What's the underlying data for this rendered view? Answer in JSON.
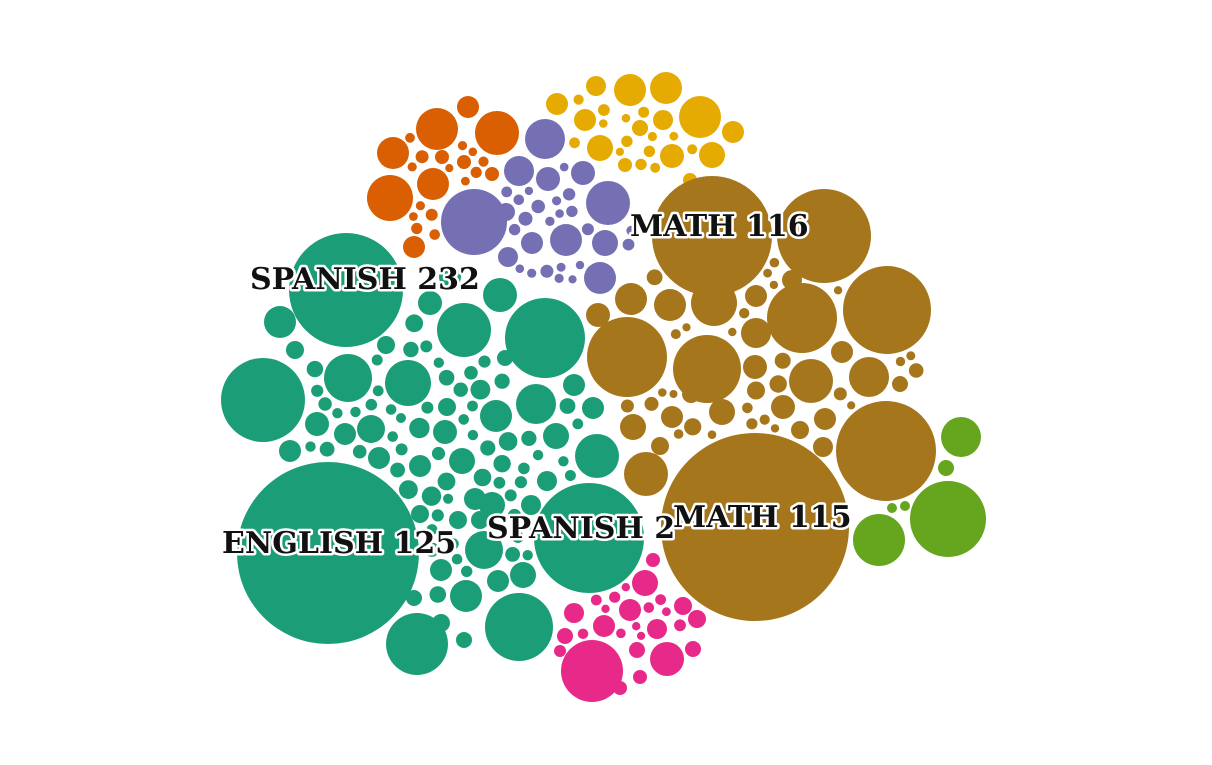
{
  "chart_data": {
    "type": "bubble",
    "labels": [
      "SPANISH 232",
      "MATH 116",
      "ENGLISH 125",
      "SPANISH 2",
      "MATH 115"
    ],
    "groups": [
      {
        "name": "orange",
        "color": "#d95f02",
        "bubbles": 26
      },
      {
        "name": "gold",
        "color": "#e6ab02",
        "bubbles": 30
      },
      {
        "name": "purple",
        "color": "#7570b3",
        "bubbles": 34
      },
      {
        "name": "brown",
        "color": "#a6761d",
        "bubbles": 72
      },
      {
        "name": "teal",
        "color": "#1b9e77",
        "bubbles": 120
      },
      {
        "name": "pink",
        "color": "#e7298a",
        "bubbles": 24
      },
      {
        "name": "green",
        "color": "#66a61e",
        "bubbles": 6
      }
    ]
  }
}
